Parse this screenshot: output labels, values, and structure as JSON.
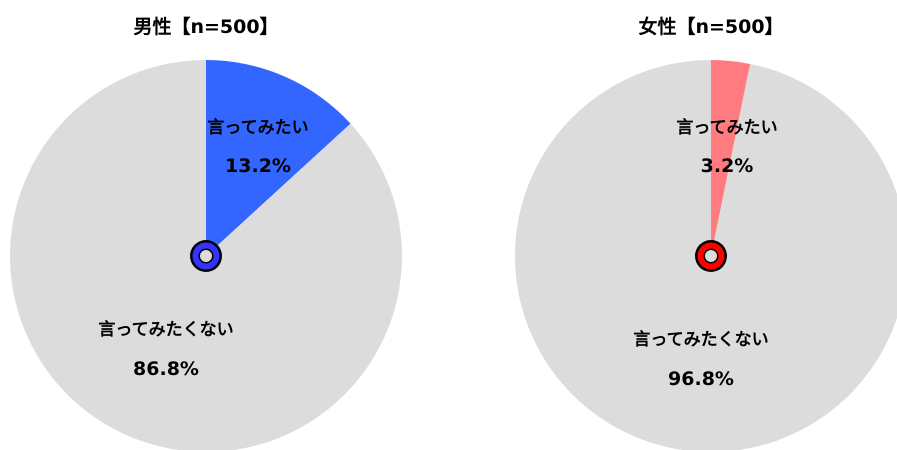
{
  "colors": {
    "background_slice": "#dcdcdc",
    "male_accent": "#3366ff",
    "female_accent": "#ff7b7f",
    "ring_outline": "#000000"
  },
  "chart_data": [
    {
      "type": "pie",
      "title": "男性【n=500】",
      "slices": [
        {
          "label": "言ってみたい",
          "value": 13.2,
          "value_label": "13.2%",
          "color": "#3366ff"
        },
        {
          "label": "言ってみたくない",
          "value": 86.8,
          "value_label": "86.8%",
          "color": "#dcdcdc"
        }
      ],
      "center_ring_color": "#3333ff",
      "legend": "none"
    },
    {
      "type": "pie",
      "title": "女性【n=500】",
      "slices": [
        {
          "label": "言ってみたい",
          "value": 3.2,
          "value_label": "3.2%",
          "color": "#ff7b7f"
        },
        {
          "label": "言ってみたくない",
          "value": 96.8,
          "value_label": "96.8%",
          "color": "#dcdcdc"
        }
      ],
      "center_ring_color": "#ff0000",
      "legend": "none"
    }
  ]
}
